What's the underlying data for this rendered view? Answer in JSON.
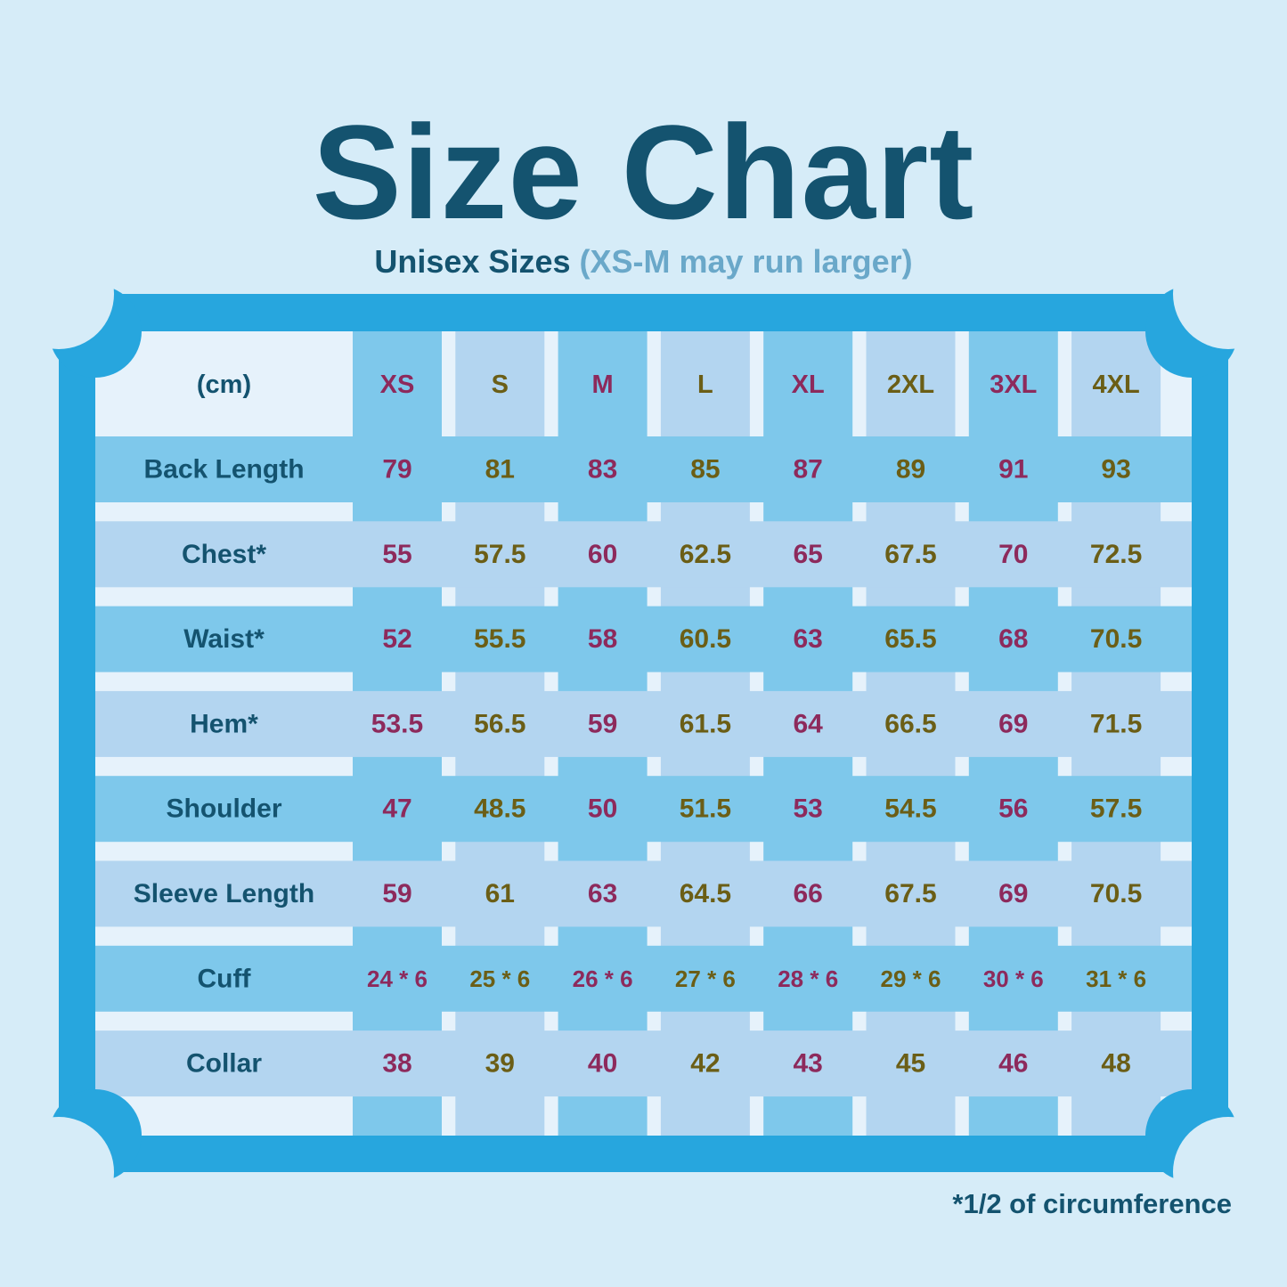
{
  "title": "Size Chart",
  "subtitle_main": "Unisex Sizes",
  "subtitle_note": "(XS-M may run larger)",
  "footnote": "*1/2 of circumference",
  "colors": {
    "background": "#d6ecf8",
    "frame": "#27a6de",
    "navy": "#14536f",
    "magenta": "#8d2a5c",
    "olive": "#6b5e16",
    "stripe_dark": "#7ec8eb",
    "stripe_light": "#b3d5f0",
    "header_bg": "#e6f2fb"
  },
  "chart_data": {
    "type": "table",
    "unit_label": "(cm)",
    "columns": [
      "XS",
      "S",
      "M",
      "L",
      "XL",
      "2XL",
      "3XL",
      "4XL"
    ],
    "rows": [
      {
        "label": "Back Length",
        "values": [
          "79",
          "81",
          "83",
          "85",
          "87",
          "89",
          "91",
          "93"
        ]
      },
      {
        "label": "Chest*",
        "values": [
          "55",
          "57.5",
          "60",
          "62.5",
          "65",
          "67.5",
          "70",
          "72.5"
        ]
      },
      {
        "label": "Waist*",
        "values": [
          "52",
          "55.5",
          "58",
          "60.5",
          "63",
          "65.5",
          "68",
          "70.5"
        ]
      },
      {
        "label": "Hem*",
        "values": [
          "53.5",
          "56.5",
          "59",
          "61.5",
          "64",
          "66.5",
          "69",
          "71.5"
        ]
      },
      {
        "label": "Shoulder",
        "values": [
          "47",
          "48.5",
          "50",
          "51.5",
          "53",
          "54.5",
          "56",
          "57.5"
        ]
      },
      {
        "label": "Sleeve Length",
        "values": [
          "59",
          "61",
          "63",
          "64.5",
          "66",
          "67.5",
          "69",
          "70.5"
        ]
      },
      {
        "label": "Cuff",
        "values": [
          "24 * 6",
          "25 * 6",
          "26 * 6",
          "27 * 6",
          "28 * 6",
          "29 * 6",
          "30 * 6",
          "31 * 6"
        ]
      },
      {
        "label": "Collar",
        "values": [
          "38",
          "39",
          "40",
          "42",
          "43",
          "45",
          "46",
          "48"
        ]
      }
    ]
  }
}
